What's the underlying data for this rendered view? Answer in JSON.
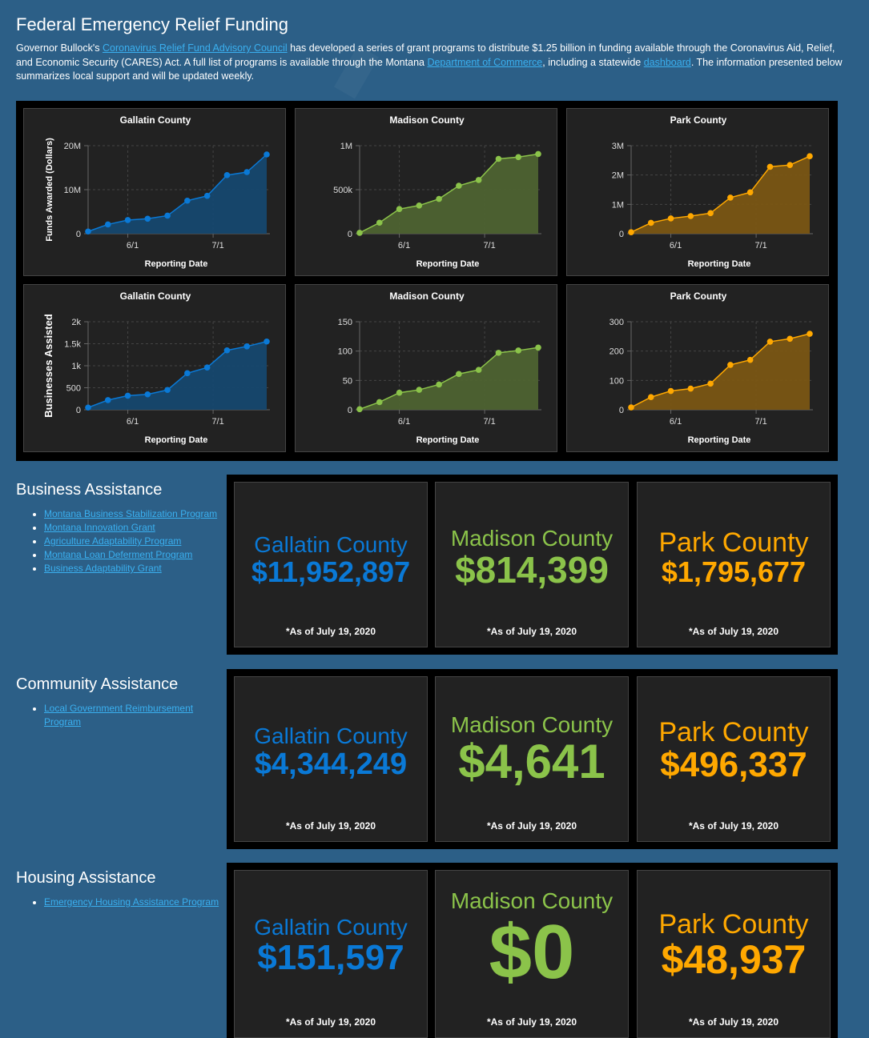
{
  "header": {
    "title": "Federal Emergency Relief Funding",
    "intro_1": "Governor Bullock's ",
    "link_council": "Coronavirus Relief Fund Advisory Council",
    "intro_2": " has developed a series of grant programs to distribute $1.25 billion in funding available through the Coronavirus Aid, Relief, and Economic Security (CARES) Act. A full list of programs is available through the Montana ",
    "link_commerce": "Department of Commerce",
    "intro_3": ", including a statewide ",
    "link_dashboard": "dashboard",
    "intro_4": ". The information presented below summarizes local support and will be updated weekly."
  },
  "colors": {
    "gallatin": "#0a79d6",
    "madison": "#8bc34a",
    "park": "#ffa800"
  },
  "chart_data": [
    {
      "type": "area",
      "title": "Gallatin County",
      "xlabel": "Reporting Date",
      "ylabel": "Funds Awarded (Dollars)",
      "x_ticks": [
        "6/1",
        "7/1"
      ],
      "x_tick_index": [
        2,
        6.3
      ],
      "ylim": [
        0,
        20000000
      ],
      "y_ticks": [
        0,
        10000000,
        20000000
      ],
      "y_tick_labels": [
        "0",
        "10M",
        "20M"
      ],
      "grid": true,
      "series": [
        {
          "name": "Gallatin County",
          "values": [
            500000,
            2100000,
            3100000,
            3400000,
            4100000,
            7500000,
            8600000,
            13300000,
            14000000,
            18000000
          ]
        }
      ],
      "color": "#0a79d6",
      "fill": "#16486f"
    },
    {
      "type": "area",
      "title": "Madison County",
      "xlabel": "Reporting Date",
      "ylabel": "",
      "x_ticks": [
        "6/1",
        "7/1"
      ],
      "x_tick_index": [
        2,
        6.3
      ],
      "ylim": [
        0,
        1000000
      ],
      "y_ticks": [
        0,
        500000,
        1000000
      ],
      "y_tick_labels": [
        "0",
        "500k",
        "1M"
      ],
      "grid": true,
      "series": [
        {
          "name": "Madison County",
          "values": [
            10000,
            125000,
            280000,
            320000,
            395000,
            545000,
            610000,
            850000,
            870000,
            905000
          ]
        }
      ],
      "color": "#8bc34a",
      "fill": "#4e6332"
    },
    {
      "type": "area",
      "title": "Park County",
      "xlabel": "Reporting Date",
      "ylabel": "",
      "x_ticks": [
        "6/1",
        "7/1"
      ],
      "x_tick_index": [
        2,
        6.3
      ],
      "ylim": [
        0,
        3000000
      ],
      "y_ticks": [
        0,
        1000000,
        2000000,
        3000000
      ],
      "y_tick_labels": [
        "0",
        "1M",
        "2M",
        "3M"
      ],
      "grid": true,
      "series": [
        {
          "name": "Park County",
          "values": [
            50000,
            370000,
            520000,
            600000,
            700000,
            1230000,
            1410000,
            2280000,
            2340000,
            2640000
          ]
        }
      ],
      "color": "#ffa800",
      "fill": "#7a5614"
    },
    {
      "type": "area",
      "title": "Gallatin County",
      "xlabel": "Reporting Date",
      "ylabel": "Businesses Assisted",
      "x_ticks": [
        "6/1",
        "7/1"
      ],
      "x_tick_index": [
        2,
        6.3
      ],
      "ylim": [
        0,
        2000
      ],
      "y_ticks": [
        0,
        500,
        1000,
        1500,
        2000
      ],
      "y_tick_labels": [
        "0",
        "500",
        "1k",
        "1.5k",
        "2k"
      ],
      "grid": true,
      "series": [
        {
          "name": "Gallatin County",
          "values": [
            50,
            220,
            320,
            350,
            450,
            830,
            960,
            1350,
            1440,
            1550
          ]
        }
      ],
      "color": "#0a79d6",
      "fill": "#16486f"
    },
    {
      "type": "area",
      "title": "Madison County",
      "xlabel": "Reporting Date",
      "ylabel": "",
      "x_ticks": [
        "6/1",
        "7/1"
      ],
      "x_tick_index": [
        2,
        6.3
      ],
      "ylim": [
        0,
        150
      ],
      "y_ticks": [
        0,
        50,
        100,
        150
      ],
      "y_tick_labels": [
        "0",
        "50",
        "100",
        "150"
      ],
      "grid": true,
      "series": [
        {
          "name": "Madison County",
          "values": [
            1,
            13,
            29,
            34,
            43,
            61,
            68,
            97,
            101,
            106
          ]
        }
      ],
      "color": "#8bc34a",
      "fill": "#4e6332"
    },
    {
      "type": "area",
      "title": "Park County",
      "xlabel": "Reporting Date",
      "ylabel": "",
      "x_ticks": [
        "6/1",
        "7/1"
      ],
      "x_tick_index": [
        2,
        6.3
      ],
      "ylim": [
        0,
        300
      ],
      "y_ticks": [
        0,
        100,
        200,
        300
      ],
      "y_tick_labels": [
        "0",
        "100",
        "200",
        "300"
      ],
      "grid": true,
      "series": [
        {
          "name": "Park County",
          "values": [
            8,
            43,
            64,
            72,
            89,
            153,
            170,
            232,
            242,
            259
          ]
        }
      ],
      "color": "#ffa800",
      "fill": "#7a5614"
    }
  ],
  "sections": [
    {
      "title": "Business Assistance",
      "links": [
        "Montana Business Stabilization Program",
        "Montana Innovation Grant",
        "Agriculture Adaptability Program",
        "Montana Loan Deferment Program",
        "Business Adaptability Grant"
      ],
      "cards": [
        {
          "county": "Gallatin County",
          "amount": "$11,952,897",
          "asof": "*As of July 19, 2020"
        },
        {
          "county": "Madison County",
          "amount": "$814,399",
          "asof": "*As of July 19, 2020"
        },
        {
          "county": "Park County",
          "amount": "$1,795,677",
          "asof": "*As of July 19, 2020"
        }
      ]
    },
    {
      "title": "Community Assistance",
      "links": [
        "Local Government Reimbursement Program"
      ],
      "cards": [
        {
          "county": "Gallatin County",
          "amount": "$4,344,249",
          "asof": "*As of July 19, 2020"
        },
        {
          "county": "Madison County",
          "amount": "$4,641",
          "asof": "*As of July 19, 2020"
        },
        {
          "county": "Park County",
          "amount": "$496,337",
          "asof": "*As of July 19, 2020"
        }
      ]
    },
    {
      "title": "Housing Assistance",
      "links": [
        "Emergency Housing Assistance Program"
      ],
      "cards": [
        {
          "county": "Gallatin County",
          "amount": "$151,597",
          "asof": "*As of July 19, 2020"
        },
        {
          "county": "Madison County",
          "amount": "$0",
          "asof": "*As of July 19, 2020"
        },
        {
          "county": "Park County",
          "amount": "$48,937",
          "asof": "*As of July 19, 2020"
        }
      ]
    }
  ]
}
